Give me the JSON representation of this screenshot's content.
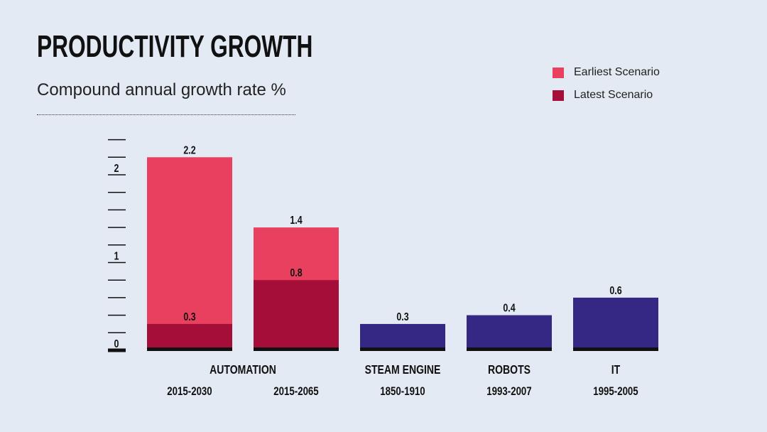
{
  "title": "PRODUCTIVITY GROWTH",
  "subtitle": "Compound annual growth rate %",
  "legend": [
    {
      "label": "Earliest Scenario",
      "color": "#e8405e"
    },
    {
      "label": "Latest Scenario",
      "color": "#a50e39"
    }
  ],
  "colors": {
    "earliest": "#e8405e",
    "latest": "#a50e39",
    "historical": "#352784",
    "baseline": "#111111"
  },
  "chart_data": {
    "type": "bar",
    "title": "PRODUCTIVITY GROWTH",
    "subtitle": "Compound annual growth rate %",
    "ylim": [
      0,
      2.4
    ],
    "y_ticks": [
      "0",
      "1",
      "2"
    ],
    "groups": [
      {
        "label": "AUTOMATION",
        "bars": [
          {
            "period": "2015-2030"
          },
          {
            "period": "2015-2065"
          }
        ]
      },
      {
        "label": "STEAM ENGINE",
        "bars": [
          {
            "period": "1850-1910"
          }
        ]
      },
      {
        "label": "ROBOTS",
        "bars": [
          {
            "period": "1993-2007"
          }
        ]
      },
      {
        "label": "IT",
        "bars": [
          {
            "period": "1995-2005"
          }
        ]
      }
    ],
    "categories": [
      "2015-2030",
      "2015-2065",
      "1850-1910",
      "1993-2007",
      "1995-2005"
    ],
    "series": [
      {
        "name": "Earliest Scenario",
        "values": [
          2.2,
          1.4,
          null,
          null,
          null
        ],
        "labels": [
          "2.2",
          "1.4",
          null,
          null,
          null
        ]
      },
      {
        "name": "Latest Scenario",
        "values": [
          0.3,
          0.8,
          null,
          null,
          null
        ],
        "labels": [
          "0.3",
          "0.8",
          null,
          null,
          null
        ]
      },
      {
        "values": [
          null,
          null,
          0.3,
          0.4,
          0.6
        ],
        "labels": [
          null,
          null,
          "0.3",
          "0.4",
          "0.6"
        ]
      }
    ]
  }
}
